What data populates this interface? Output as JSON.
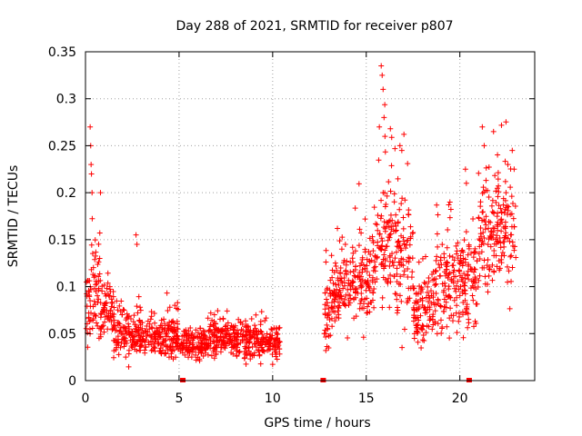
{
  "chart_data": {
    "type": "scatter",
    "title": "Day 288 of 2021, SRMTID for receiver p807",
    "xlabel": "GPS time / hours",
    "ylabel": "SRMTID / TECUs",
    "xlim": [
      0,
      24
    ],
    "ylim": [
      0,
      0.35
    ],
    "x_ticks": [
      0,
      5,
      10,
      15,
      20
    ],
    "x_tick_labels": [
      "0",
      "5",
      "10",
      "15",
      "20"
    ],
    "y_ticks": [
      0,
      0.05,
      0.1,
      0.15,
      0.2,
      0.25,
      0.3,
      0.35
    ],
    "y_tick_labels": [
      "0",
      "0.05",
      "0.1",
      "0.15",
      "0.2",
      "0.25",
      "0.3",
      "0.35"
    ],
    "grid": true,
    "series_color": "#ff0000",
    "gap_markers_x": [
      5.2,
      12.7,
      20.5
    ],
    "segments": [
      {
        "x0": 0.0,
        "x1": 0.3,
        "base": 0.075,
        "spread": 0.025
      },
      {
        "x0": 0.3,
        "x1": 0.8,
        "base": 0.095,
        "spread": 0.045
      },
      {
        "x0": 0.8,
        "x1": 1.5,
        "base": 0.075,
        "spread": 0.025
      },
      {
        "x0": 1.5,
        "x1": 3.0,
        "base": 0.05,
        "spread": 0.02
      },
      {
        "x0": 3.0,
        "x1": 5.0,
        "base": 0.045,
        "spread": 0.018
      },
      {
        "x0": 5.0,
        "x1": 6.5,
        "base": 0.038,
        "spread": 0.012
      },
      {
        "x0": 6.5,
        "x1": 8.5,
        "base": 0.045,
        "spread": 0.015
      },
      {
        "x0": 8.5,
        "x1": 10.4,
        "base": 0.042,
        "spread": 0.016
      },
      {
        "x0": 12.7,
        "x1": 13.2,
        "base": 0.07,
        "spread": 0.03
      },
      {
        "x0": 13.2,
        "x1": 14.5,
        "base": 0.1,
        "spread": 0.03
      },
      {
        "x0": 14.5,
        "x1": 15.5,
        "base": 0.115,
        "spread": 0.04
      },
      {
        "x0": 15.5,
        "x1": 16.5,
        "base": 0.14,
        "spread": 0.06
      },
      {
        "x0": 16.5,
        "x1": 17.5,
        "base": 0.13,
        "spread": 0.05
      },
      {
        "x0": 17.5,
        "x1": 18.7,
        "base": 0.075,
        "spread": 0.03
      },
      {
        "x0": 18.7,
        "x1": 20.0,
        "base": 0.1,
        "spread": 0.045
      },
      {
        "x0": 20.0,
        "x1": 21.0,
        "base": 0.11,
        "spread": 0.04
      },
      {
        "x0": 21.0,
        "x1": 22.0,
        "base": 0.15,
        "spread": 0.04
      },
      {
        "x0": 22.0,
        "x1": 23.0,
        "base": 0.16,
        "spread": 0.05
      }
    ],
    "peaks": [
      {
        "x": 0.25,
        "y": 0.27
      },
      {
        "x": 0.28,
        "y": 0.25
      },
      {
        "x": 0.3,
        "y": 0.23
      },
      {
        "x": 0.32,
        "y": 0.22
      },
      {
        "x": 0.35,
        "y": 0.2
      },
      {
        "x": 0.8,
        "y": 0.2
      },
      {
        "x": 2.7,
        "y": 0.155
      },
      {
        "x": 2.75,
        "y": 0.145
      },
      {
        "x": 15.8,
        "y": 0.335
      },
      {
        "x": 15.85,
        "y": 0.325
      },
      {
        "x": 15.9,
        "y": 0.31
      },
      {
        "x": 15.95,
        "y": 0.28
      },
      {
        "x": 16.0,
        "y": 0.26
      },
      {
        "x": 15.7,
        "y": 0.27
      },
      {
        "x": 16.8,
        "y": 0.25
      },
      {
        "x": 16.9,
        "y": 0.245
      },
      {
        "x": 20.3,
        "y": 0.225
      },
      {
        "x": 20.35,
        "y": 0.21
      },
      {
        "x": 21.2,
        "y": 0.27
      },
      {
        "x": 21.3,
        "y": 0.25
      },
      {
        "x": 21.8,
        "y": 0.265
      },
      {
        "x": 22.8,
        "y": 0.245
      },
      {
        "x": 22.9,
        "y": 0.225
      }
    ]
  }
}
